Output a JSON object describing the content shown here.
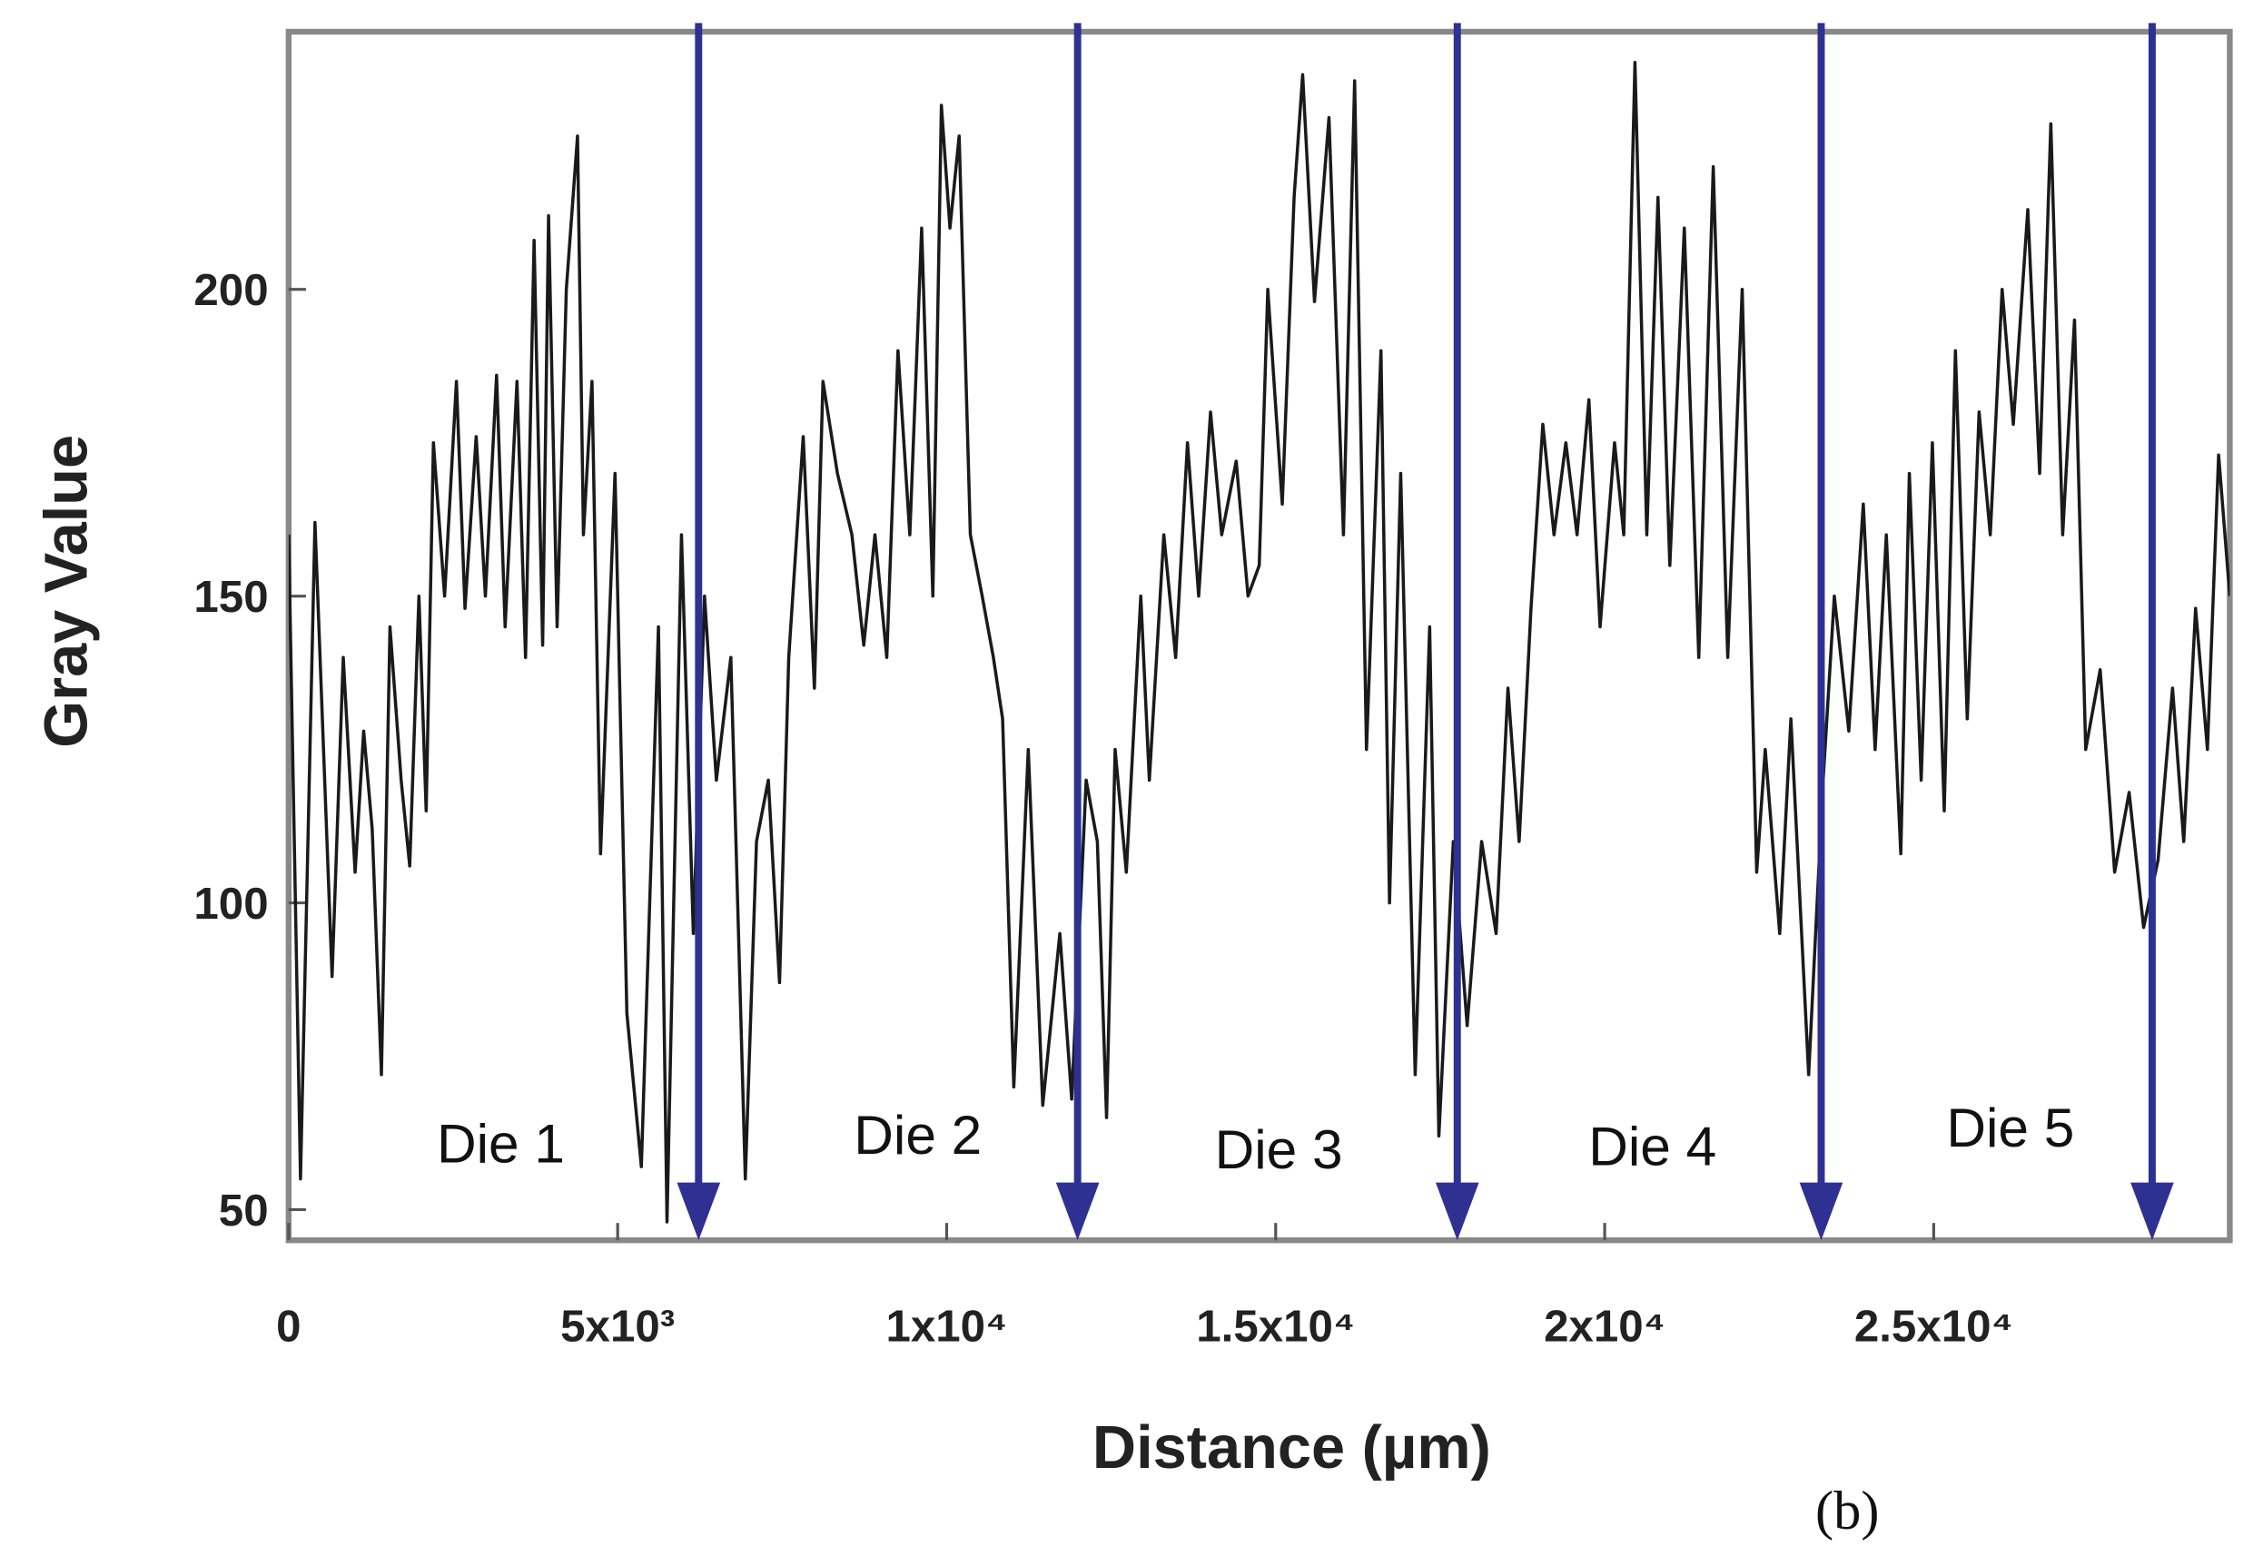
{
  "chart_data": {
    "type": "line",
    "xlabel": "Distance (µm)",
    "ylabel": "Gray Value",
    "panel_label": "(b)",
    "x": [
      0,
      180,
      400,
      660,
      830,
      1010,
      1140,
      1270,
      1410,
      1540,
      1710,
      1840,
      1980,
      2090,
      2200,
      2370,
      2550,
      2680,
      2850,
      2990,
      3160,
      3290,
      3470,
      3600,
      3730,
      3860,
      3950,
      4080,
      4220,
      4390,
      4480,
      4610,
      4740,
      4960,
      5140,
      5360,
      5620,
      5750,
      5970,
      6150,
      6320,
      6500,
      6720,
      6940,
      7110,
      7290,
      7460,
      7600,
      7820,
      7990,
      8120,
      8340,
      8560,
      8740,
      8910,
      9090,
      9260,
      9440,
      9620,
      9790,
      9920,
      10050,
      10190,
      10360,
      10540,
      10710,
      10850,
      11020,
      11240,
      11460,
      11720,
      11900,
      12120,
      12290,
      12430,
      12560,
      12730,
      12950,
      13080,
      13300,
      13480,
      13660,
      13830,
      14010,
      14180,
      14400,
      14580,
      14750,
      14880,
      15100,
      15280,
      15410,
      15590,
      15810,
      16030,
      16200,
      16380,
      16600,
      16730,
      16900,
      17120,
      17340,
      17480,
      17700,
      17910,
      18130,
      18350,
      18530,
      18700,
      18880,
      19060,
      19230,
      19410,
      19580,
      19760,
      19930,
      20150,
      20290,
      20460,
      20640,
      20810,
      20990,
      21210,
      21430,
      21650,
      21870,
      22090,
      22310,
      22440,
      22660,
      22830,
      23100,
      23320,
      23490,
      23710,
      23930,
      24110,
      24280,
      24500,
      24630,
      24810,
      24980,
      25160,
      25330,
      25510,
      25690,
      25860,
      26040,
      26210,
      26430,
      26610,
      26780,
      26960,
      27140,
      27310,
      27530,
      27750,
      27970,
      28190,
      28410,
      28630,
      28800,
      28980,
      29160,
      29330,
      29500
    ],
    "series": [
      {
        "color": "#1a1a1a",
        "values": [
          160,
          55,
          162,
          88,
          140,
          105,
          128,
          112,
          72,
          145,
          120,
          106,
          150,
          115,
          175,
          150,
          185,
          148,
          176,
          150,
          186,
          145,
          185,
          140,
          208,
          142,
          212,
          145,
          200,
          225,
          160,
          185,
          108,
          170,
          82,
          57,
          145,
          48,
          160,
          95,
          150,
          120,
          140,
          55,
          110,
          120,
          87,
          140,
          176,
          135,
          185,
          170,
          160,
          142,
          160,
          140,
          190,
          160,
          210,
          150,
          230,
          210,
          225,
          160,
          150,
          140,
          130,
          70,
          125,
          67,
          95,
          68,
          120,
          110,
          65,
          125,
          105,
          150,
          120,
          160,
          140,
          175,
          150,
          180,
          160,
          172,
          150,
          155,
          200,
          165,
          215,
          235,
          198,
          228,
          160,
          234,
          125,
          190,
          100,
          170,
          72,
          145,
          62,
          110,
          80,
          110,
          95,
          135,
          110,
          148,
          178,
          160,
          175,
          160,
          182,
          145,
          175,
          160,
          237,
          160,
          215,
          155,
          210,
          140,
          220,
          140,
          200,
          105,
          125,
          95,
          130,
          72,
          120,
          150,
          128,
          165,
          125,
          160,
          108,
          170,
          120,
          175,
          115,
          190,
          130,
          180,
          160,
          200,
          178,
          213,
          170,
          227,
          160,
          195,
          125,
          138,
          105,
          118,
          96,
          107,
          135,
          110,
          148,
          125,
          173,
          150
        ]
      }
    ],
    "markers": {
      "x": [
        6230,
        11990,
        17760,
        23290,
        28320
      ],
      "color": "#2e3192"
    },
    "annotations": [
      "Die 1",
      "Die 2",
      "Die 3",
      "Die 4",
      "Die 5"
    ],
    "xlim": [
      0,
      29500
    ],
    "ylim": [
      45,
      242
    ],
    "xticks": [
      0,
      {
        "value": 5000,
        "label": "5x10³"
      },
      {
        "value": 10000,
        "label": "1x10⁴"
      },
      {
        "value": 15000,
        "label": "1.5x10⁴"
      },
      {
        "value": 20000,
        "label": "2x10⁴"
      },
      {
        "value": 25000,
        "label": "2.5x10⁴"
      }
    ],
    "yticks": [
      50,
      100,
      150,
      200
    ]
  }
}
